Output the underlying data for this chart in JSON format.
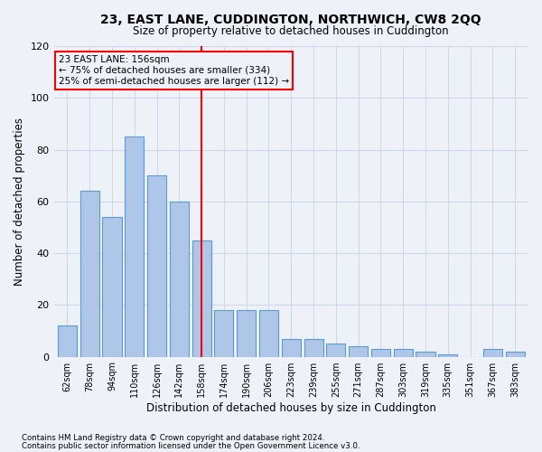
{
  "title": "23, EAST LANE, CUDDINGTON, NORTHWICH, CW8 2QQ",
  "subtitle": "Size of property relative to detached houses in Cuddington",
  "xlabel": "Distribution of detached houses by size in Cuddington",
  "ylabel": "Number of detached properties",
  "bar_labels": [
    "62sqm",
    "78sqm",
    "94sqm",
    "110sqm",
    "126sqm",
    "142sqm",
    "158sqm",
    "174sqm",
    "190sqm",
    "206sqm",
    "223sqm",
    "239sqm",
    "255sqm",
    "271sqm",
    "287sqm",
    "303sqm",
    "319sqm",
    "335sqm",
    "351sqm",
    "367sqm",
    "383sqm"
  ],
  "bar_values": [
    12,
    64,
    54,
    85,
    70,
    60,
    45,
    18,
    18,
    18,
    7,
    7,
    5,
    4,
    3,
    3,
    2,
    1,
    0,
    3,
    2
  ],
  "bar_color": "#aec6e8",
  "bar_edge_color": "#5b9bd5",
  "reference_line_x": 6.5,
  "annotation_line1": "23 EAST LANE: 156sqm",
  "annotation_line2": "← 75% of detached houses are smaller (334)",
  "annotation_line3": "25% of semi-detached houses are larger (112) →",
  "ylim": [
    0,
    120
  ],
  "yticks": [
    0,
    20,
    40,
    60,
    80,
    100,
    120
  ],
  "grid_color": "#d0d8e8",
  "background_color": "#eef2f8",
  "title_fontsize": 10,
  "subtitle_fontsize": 8.5,
  "footnote1": "Contains HM Land Registry data © Crown copyright and database right 2024.",
  "footnote2": "Contains public sector information licensed under the Open Government Licence v3.0."
}
